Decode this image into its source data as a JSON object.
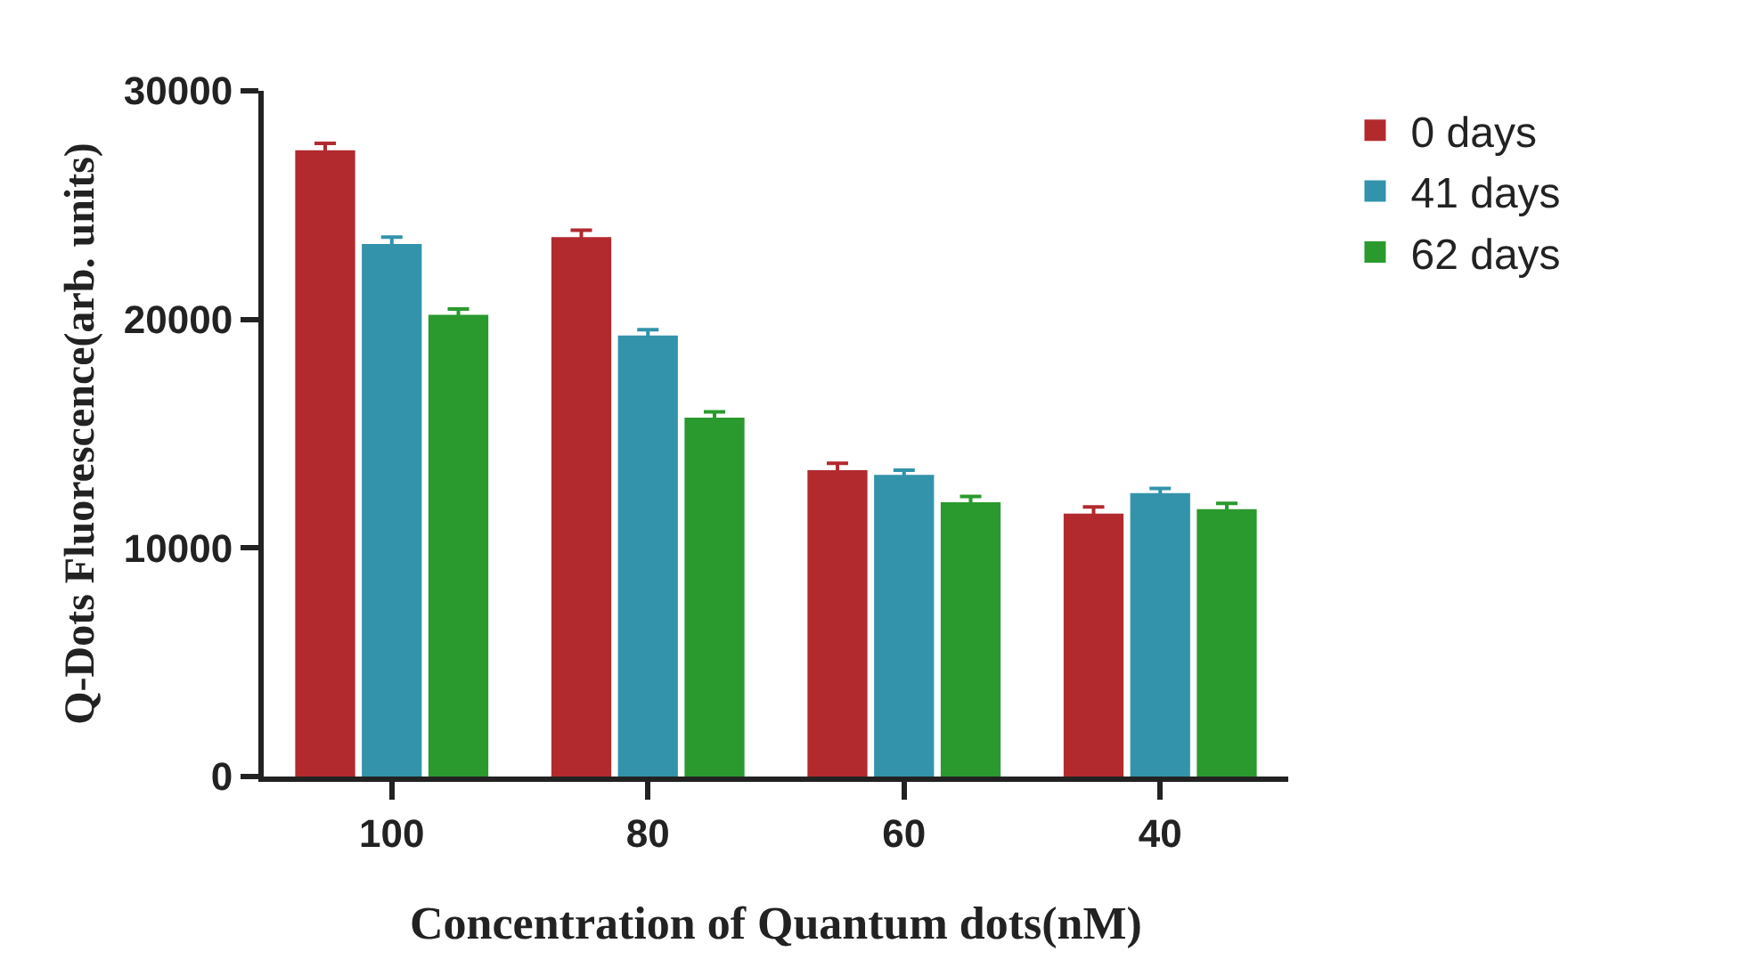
{
  "chart_data": {
    "type": "bar",
    "xlabel": "Concentration of Quantum dots(nM)",
    "ylabel": "Q-Dots Fluorescence(arb. units)",
    "categories": [
      "100",
      "80",
      "60",
      "40"
    ],
    "series": [
      {
        "name": "0 days",
        "color": "#b22a2e",
        "values": [
          27400,
          23600,
          13400,
          11500
        ],
        "errors": [
          300,
          300,
          300,
          300
        ]
      },
      {
        "name": "41 days",
        "color": "#3393ab",
        "values": [
          23300,
          19300,
          13200,
          12400
        ],
        "errors": [
          300,
          250,
          200,
          200
        ]
      },
      {
        "name": "62 days",
        "color": "#2a9a2e",
        "values": [
          20200,
          15700,
          12000,
          11700
        ],
        "errors": [
          250,
          250,
          250,
          250
        ]
      }
    ],
    "ylim": [
      0,
      30000
    ],
    "yticks": [
      0,
      10000,
      20000,
      30000
    ],
    "grid": false,
    "legend": "top right"
  }
}
